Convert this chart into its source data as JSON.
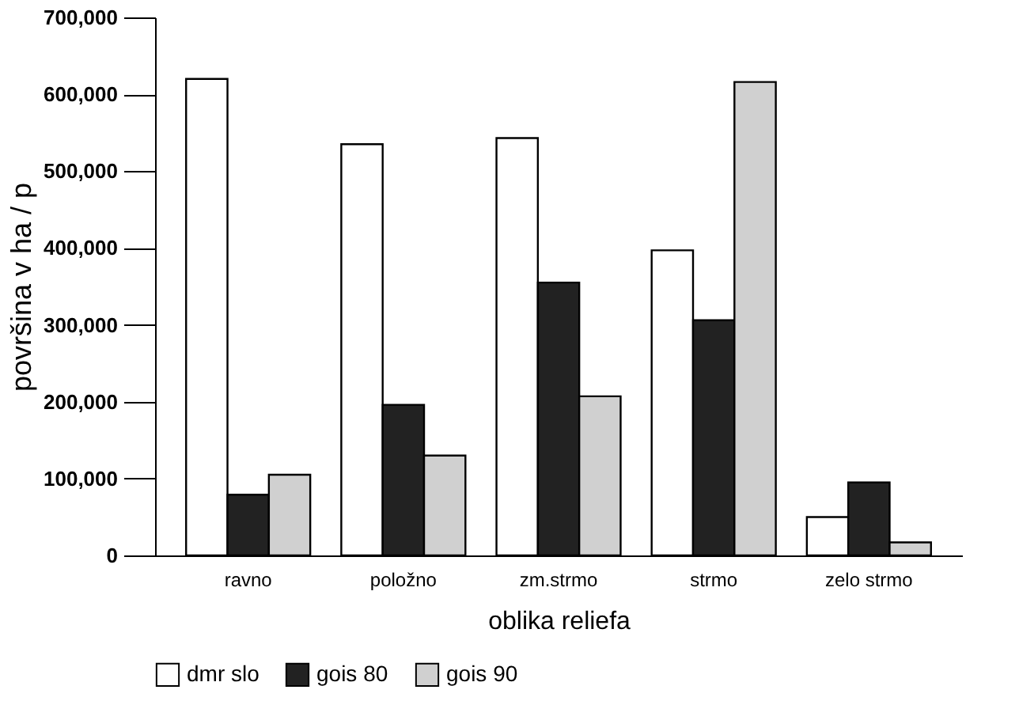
{
  "chart_data": {
    "type": "bar",
    "categories": [
      "ravno",
      "položno",
      "zm.strmo",
      "strmo",
      "zelo strmo"
    ],
    "series": [
      {
        "name": "dmr  slo",
        "color": "#ffffff",
        "values": [
          620000,
          535000,
          543000,
          397000,
          50000
        ]
      },
      {
        "name": "gois  80",
        "color": "#222222",
        "values": [
          79000,
          196000,
          355000,
          306000,
          95000
        ]
      },
      {
        "name": "gois  90",
        "color": "#d0d0d0",
        "values": [
          105000,
          130000,
          207000,
          616000,
          17000
        ]
      }
    ],
    "xlabel": "oblika reliefa",
    "ylabel": "površina v ha / p",
    "ylim": [
      0,
      700000
    ],
    "yticks": [
      0,
      {
        "value": 100000,
        "label": "100,000"
      },
      {
        "value": 200000,
        "label": "200,000"
      },
      {
        "value": 300000,
        "label": "300,000"
      },
      {
        "value": 400000,
        "label": "400,000"
      },
      {
        "value": 500000,
        "label": "500,000"
      },
      {
        "value": 600000,
        "label": "600,000"
      },
      {
        "value": 700000,
        "label": "700,000"
      }
    ],
    "grid": false,
    "legend": "bottom"
  }
}
